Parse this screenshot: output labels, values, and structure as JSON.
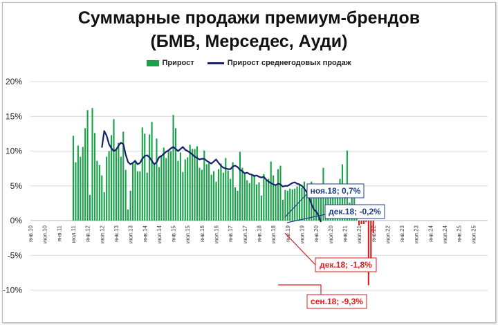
{
  "chart_data": {
    "type": "bar+line",
    "title_line1": "Суммарные продажи премиум-брендов",
    "title_line2": "(БМВ, Мерседес, Ауди)",
    "legend": [
      "Прирост",
      "Прирост среднегодовых продаж"
    ],
    "colors": {
      "positive_bar": "#1aa24a",
      "negative_bar": "#e31a1c",
      "line": "#15216b",
      "callout_blue": "#1f3c88",
      "callout_red": "#e31a1c"
    },
    "ylim": [
      -12,
      20
    ],
    "yticks": [
      20,
      15,
      10,
      5,
      0,
      -5,
      -10
    ],
    "ytick_labels": [
      "20%",
      "15%",
      "10%",
      "5%",
      "0%",
      "-5%",
      "-10%"
    ],
    "grid": true,
    "x_start": "янв.10",
    "x_end": "июл.25",
    "x_tick_labels": [
      "янв.10",
      "июл.10",
      "янв.11",
      "июл.11",
      "янв.12",
      "июл.12",
      "янв.13",
      "июл.13",
      "янв.14",
      "июл.14",
      "янв.15",
      "июл.15",
      "янв.16",
      "июл.16",
      "янв.17",
      "июл.17",
      "янв.18",
      "июл.18",
      "янв.19",
      "июл.19",
      "янв.20",
      "июл.20",
      "янв.21",
      "июл.21",
      "янв.22",
      "июл.22",
      "янв.23",
      "июл.23",
      "янв.24",
      "июл.24",
      "янв.25",
      "июл.25"
    ],
    "bars": {
      "start": "июл.11",
      "values": [
        12.2,
        8.4,
        10.8,
        9.2,
        10.6,
        13.3,
        15.9,
        3.7,
        16.2,
        12.6,
        8.6,
        8.0,
        6.5,
        4.1,
        9.2,
        10.0,
        12.3,
        14.6,
        10.2,
        11.2,
        9.2,
        12.8,
        7.3,
        1.6,
        4.3,
        8.3,
        8.7,
        7.1,
        7.1,
        13.4,
        12.5,
        6.9,
        12.4,
        14.2,
        8.3,
        11.8,
        7.7,
        9.3,
        10.5,
        9.0,
        10.0,
        10.0,
        15.2,
        13.3,
        8.6,
        9.8,
        7.0,
        8.8,
        9.1,
        10.9,
        10.3,
        10.3,
        10.7,
        7.6,
        7.3,
        10.1,
        8.1,
        8.3,
        6.6,
        7.1,
        5.6,
        7.4,
        8.2,
        6.9,
        9.0,
        7.2,
        6.0,
        8.4,
        4.8,
        4.3,
        9.9,
        7.6,
        6.7,
        5.8,
        5.4,
        6.7,
        6.6,
        5.2,
        5.5,
        3.6,
        6.7,
        5.8,
        6.0,
        8.5,
        6.5,
        5.2,
        7.4,
        7.9,
        3.0,
        4.4,
        4.3,
        4.6,
        4.5,
        4.6,
        4.9,
        5.1,
        4.7,
        5.6,
        3.9,
        5.3,
        5.6,
        3.3,
        4.0,
        4.3,
        4.9,
        7.6,
        4.3,
        4.9,
        3.3,
        5.3,
        4.6,
        5.2,
        6.0,
        8.1,
        5.1,
        10.1,
        2.6,
        3.4,
        3.9,
        0.4,
        -0.7,
        -0.5,
        -0.5,
        -0.2,
        -9.3,
        -6.2,
        -1.8
      ]
    },
    "line": {
      "start": "июл.12",
      "values": [
        10.5,
        12.9,
        12.2,
        11.0,
        10.4,
        10.0,
        10.2,
        10.8,
        11.2,
        11.0,
        9.5,
        8.4,
        8.1,
        8.3,
        8.6,
        8.1,
        8.3,
        8.9,
        9.3,
        9.4,
        9.1,
        8.6,
        8.1,
        8.4,
        9.1,
        9.3,
        9.6,
        9.9,
        10.1,
        10.4,
        10.6,
        10.3,
        10.0,
        10.3,
        10.6,
        10.2,
        10.0,
        9.8,
        9.5,
        9.2,
        9.0,
        8.8,
        8.9,
        8.9,
        8.6,
        8.4,
        8.2,
        8.5,
        8.8,
        8.3,
        7.9,
        7.6,
        7.5,
        7.4,
        7.4,
        7.8,
        7.9,
        7.7,
        7.3,
        7.1,
        6.8,
        6.9,
        6.7,
        6.6,
        6.4,
        6.5,
        6.3,
        6.2,
        6.3,
        5.9,
        5.6,
        5.4,
        5.2,
        5.1,
        5.3,
        5.2,
        4.9,
        5.0,
        5.0,
        5.2,
        5.4,
        5.5,
        5.3,
        5.2,
        5.0,
        4.6,
        4.1,
        3.3,
        2.4,
        1.6,
        1.3,
        0.7,
        -0.2
      ]
    },
    "annotations": [
      {
        "text": "ноя.18; 0,7%",
        "color": "blue"
      },
      {
        "text": "дек.18; -0,2%",
        "color": "blue"
      },
      {
        "text": "дек.18; -1,8%",
        "color": "red"
      },
      {
        "text": "сен.18; -9,3%",
        "color": "red"
      }
    ]
  }
}
